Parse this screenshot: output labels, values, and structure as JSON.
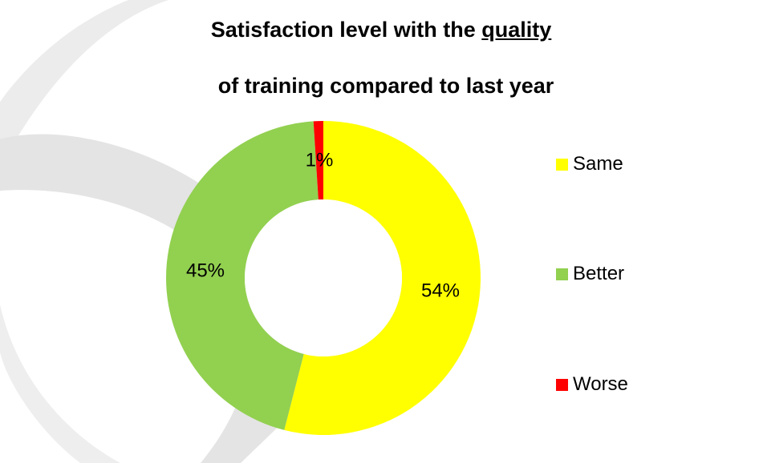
{
  "title": {
    "line1_prefix": "Satisfaction level with the ",
    "line1_emphasis": "quality",
    "line2": "of training compared to last year"
  },
  "chart_data": {
    "type": "pie",
    "variant": "donut",
    "title": "Satisfaction level with the quality of training compared to last year",
    "categories": [
      "Same",
      "Better",
      "Worse"
    ],
    "values": [
      54,
      45,
      1
    ],
    "value_labels": [
      "54%",
      "45%",
      "1%"
    ],
    "unit": "%",
    "colors": [
      "#ffff00",
      "#92d050",
      "#ff0000"
    ],
    "legend_placement": "right",
    "start_angle": "12 o'clock",
    "direction": "clockwise"
  },
  "legend": {
    "items": [
      {
        "label": "Same",
        "color": "#ffff00"
      },
      {
        "label": "Better",
        "color": "#92d050"
      },
      {
        "label": "Worse",
        "color": "#ff0000"
      }
    ]
  }
}
